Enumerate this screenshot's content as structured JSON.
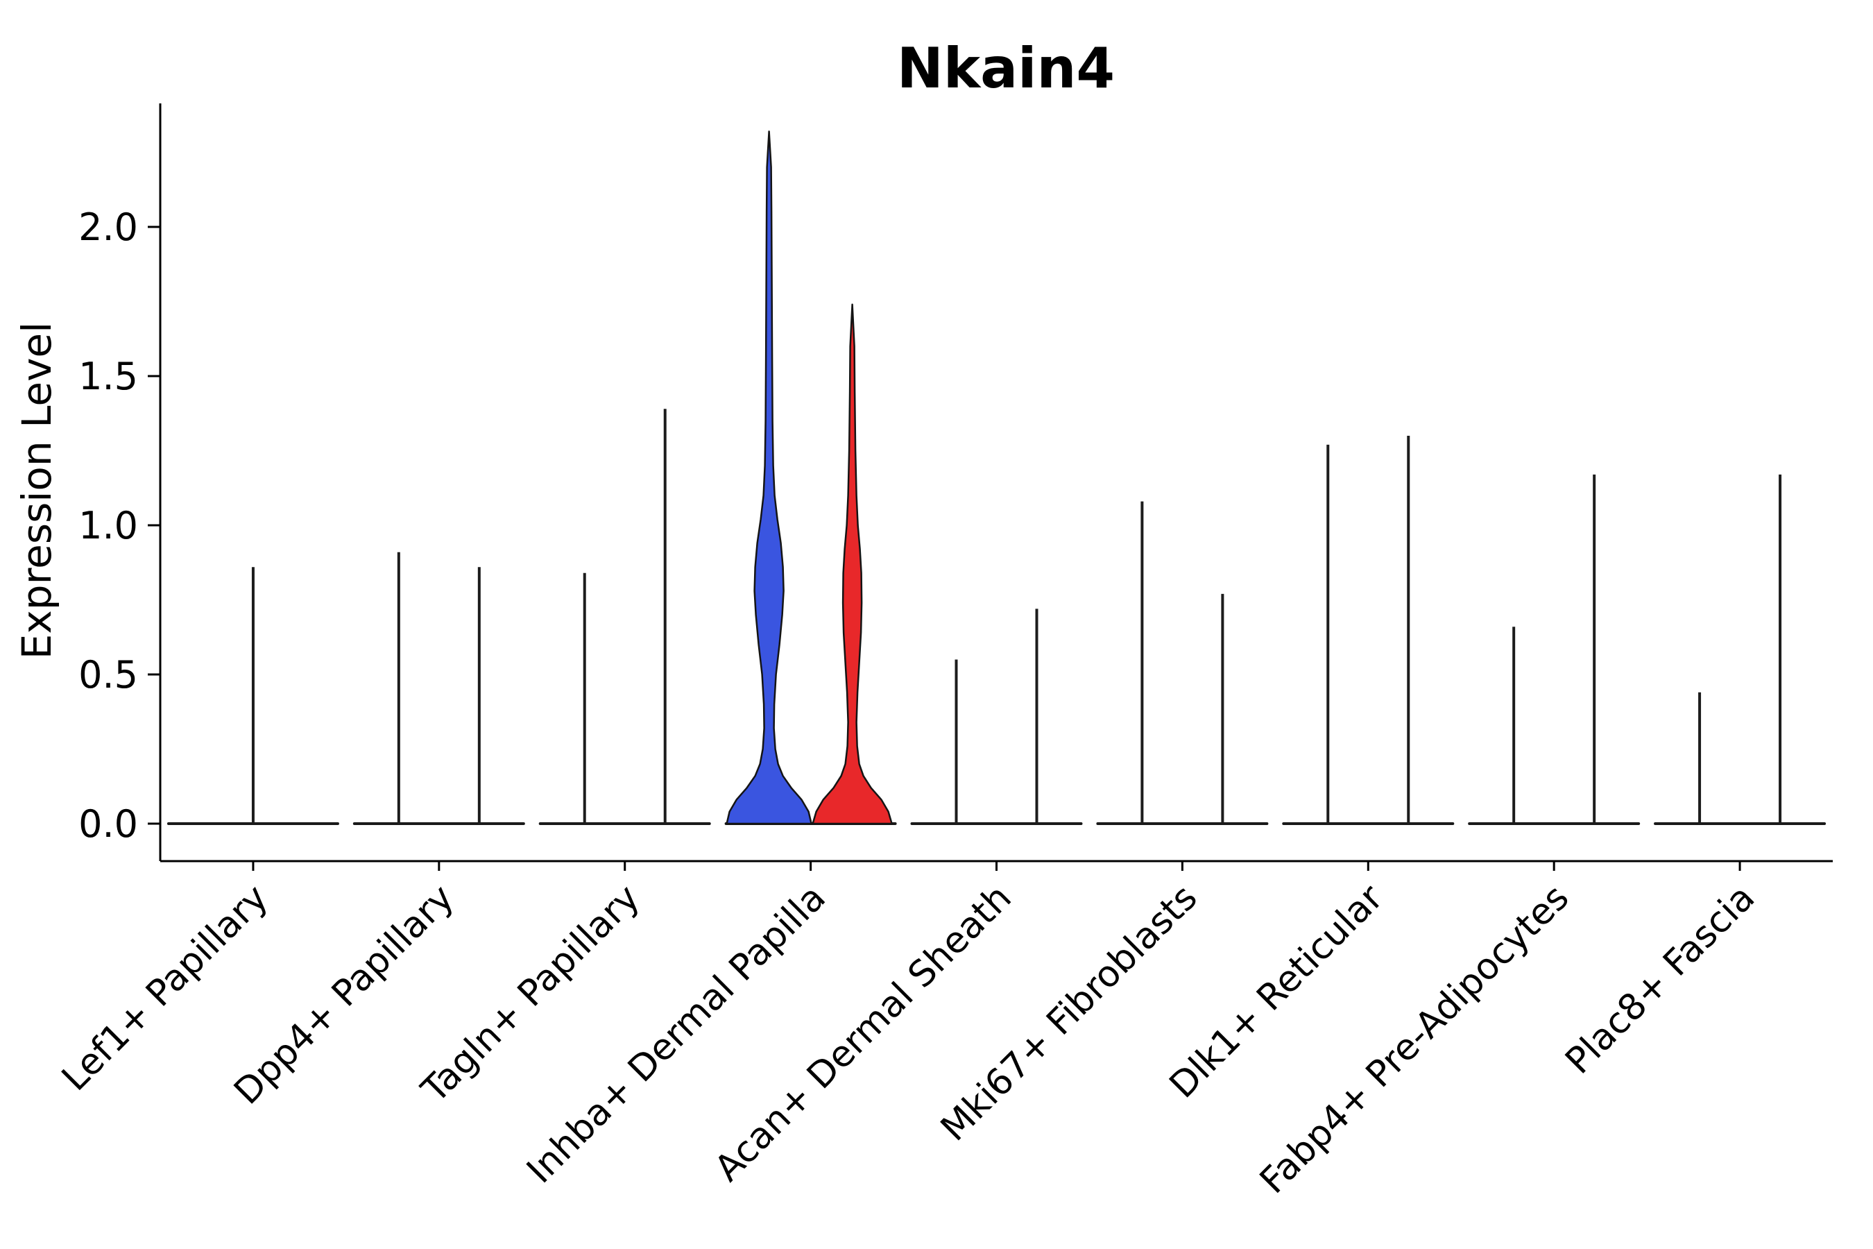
{
  "chart_data": {
    "type": "violin",
    "title": "Nkain4",
    "ylabel": "Expression Level",
    "xlabel": "",
    "ylim": [
      0,
      2.41
    ],
    "grid": false,
    "legend": "none",
    "yticks": [
      {
        "value": 0.0,
        "label": "0.0"
      },
      {
        "value": 0.5,
        "label": "0.5"
      },
      {
        "value": 1.0,
        "label": "1.0"
      },
      {
        "value": 1.5,
        "label": "1.5"
      },
      {
        "value": 2.0,
        "label": "2.0"
      }
    ],
    "categories": [
      "Lef1+ Papillary",
      "Dpp4+ Papillary",
      "Tagln+ Papillary",
      "Inhba+ Dermal Papilla",
      "Acan+ Dermal Sheath",
      "Mki67+ Fibroblasts",
      "Dlk1+ Reticular",
      "Fabp4+ Pre-Adipocytes",
      "Plac8+ Fascia"
    ],
    "colors": {
      "group_blue": "#3a55e0",
      "group_red": "#e8282a",
      "outline": "#141414",
      "spike": "#1c1c1c",
      "baseline": "#1a1a1a",
      "axis": "#000000"
    },
    "baseline_halfwidth": 122,
    "violins": [
      {
        "category": "Lef1+ Papillary",
        "items": [
          {
            "kind": "spike",
            "offset": 0,
            "max": 0.86
          }
        ]
      },
      {
        "category": "Dpp4+ Papillary",
        "items": [
          {
            "kind": "spike",
            "offset": -58,
            "max": 0.91
          },
          {
            "kind": "spike",
            "offset": 58,
            "max": 0.86
          }
        ]
      },
      {
        "category": "Tagln+ Papillary",
        "items": [
          {
            "kind": "spike",
            "offset": -58,
            "max": 0.84
          },
          {
            "kind": "spike",
            "offset": 58,
            "max": 1.39
          }
        ]
      },
      {
        "category": "Inhba+ Dermal Papilla",
        "items": [
          {
            "kind": "violin",
            "offset": -60,
            "max": 2.32,
            "fill": "#3a55e0",
            "profile": [
              [
                0.0,
                61
              ],
              [
                0.04,
                57
              ],
              [
                0.08,
                47
              ],
              [
                0.12,
                32
              ],
              [
                0.16,
                20
              ],
              [
                0.2,
                13
              ],
              [
                0.25,
                9
              ],
              [
                0.32,
                7
              ],
              [
                0.4,
                7.5
              ],
              [
                0.5,
                10
              ],
              [
                0.6,
                15
              ],
              [
                0.7,
                19
              ],
              [
                0.78,
                21
              ],
              [
                0.86,
                20
              ],
              [
                0.94,
                17
              ],
              [
                1.02,
                12
              ],
              [
                1.1,
                8
              ],
              [
                1.2,
                6
              ],
              [
                1.35,
                5
              ],
              [
                1.55,
                4.5
              ],
              [
                1.8,
                4
              ],
              [
                2.05,
                3.5
              ],
              [
                2.2,
                3
              ],
              [
                2.32,
                0
              ]
            ]
          },
          {
            "kind": "violin",
            "offset": 60,
            "max": 1.74,
            "fill": "#e8282a",
            "profile": [
              [
                0.0,
                57
              ],
              [
                0.04,
                52
              ],
              [
                0.08,
                42
              ],
              [
                0.12,
                27
              ],
              [
                0.16,
                16
              ],
              [
                0.2,
                10
              ],
              [
                0.26,
                7
              ],
              [
                0.34,
                6
              ],
              [
                0.44,
                7.5
              ],
              [
                0.54,
                10
              ],
              [
                0.64,
                12.5
              ],
              [
                0.74,
                13.5
              ],
              [
                0.84,
                13
              ],
              [
                0.92,
                11
              ],
              [
                1.0,
                8
              ],
              [
                1.1,
                6
              ],
              [
                1.25,
                4.5
              ],
              [
                1.45,
                3.5
              ],
              [
                1.6,
                3
              ],
              [
                1.74,
                0
              ]
            ]
          }
        ]
      },
      {
        "category": "Acan+ Dermal Sheath",
        "items": [
          {
            "kind": "spike",
            "offset": -58,
            "max": 0.55
          },
          {
            "kind": "spike",
            "offset": 58,
            "max": 0.72
          }
        ]
      },
      {
        "category": "Mki67+ Fibroblasts",
        "items": [
          {
            "kind": "spike",
            "offset": -58,
            "max": 1.08
          },
          {
            "kind": "spike",
            "offset": 58,
            "max": 0.77
          }
        ]
      },
      {
        "category": "Dlk1+ Reticular",
        "items": [
          {
            "kind": "spike",
            "offset": -58,
            "max": 1.27
          },
          {
            "kind": "spike",
            "offset": 58,
            "max": 1.3
          }
        ]
      },
      {
        "category": "Fabp4+ Pre-Adipocytes",
        "items": [
          {
            "kind": "spike",
            "offset": -58,
            "max": 0.66
          },
          {
            "kind": "spike",
            "offset": 58,
            "max": 1.17
          }
        ]
      },
      {
        "category": "Plac8+ Fascia",
        "items": [
          {
            "kind": "spike",
            "offset": -58,
            "max": 0.44
          },
          {
            "kind": "spike",
            "offset": 58,
            "max": 1.17
          }
        ]
      }
    ]
  }
}
